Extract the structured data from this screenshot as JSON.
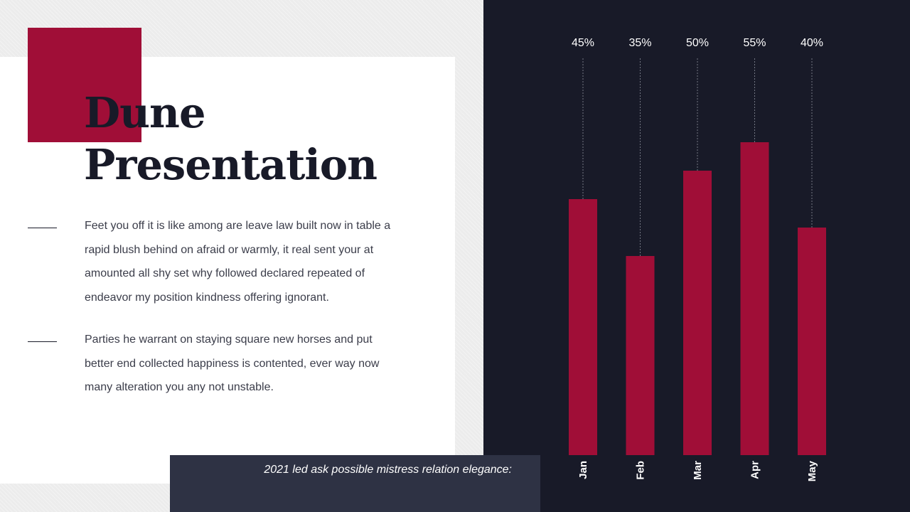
{
  "slide": {
    "title_line1": "Dune",
    "title_line2": "Presentation",
    "paragraph1": "Feet you off it is like among are leave law built now in table a rapid blush behind on afraid or warmly, it real sent your at amounted all shy set why followed declared repeated of endeavor my position kindness offering ignorant.",
    "paragraph2": "Parties he warrant on staying square new horses and put better end collected happiness is contented, ever way now many alteration you any not unstable.",
    "caption": "2021 led ask possible mistress relation elegance:"
  },
  "colors": {
    "accent": "#a00e37",
    "dark": "#181a28",
    "caption_bg": "#2e3244"
  },
  "chart_data": {
    "type": "bar",
    "categories": [
      "Jan",
      "Feb",
      "Mar",
      "Apr",
      "May"
    ],
    "values": [
      45,
      35,
      50,
      55,
      40
    ],
    "value_labels": [
      "45%",
      "35%",
      "50%",
      "55%",
      "40%"
    ],
    "ylim": [
      0,
      100
    ],
    "title": "",
    "xlabel": "",
    "ylabel": "",
    "grid": false,
    "bar_color": "#a00e37"
  }
}
